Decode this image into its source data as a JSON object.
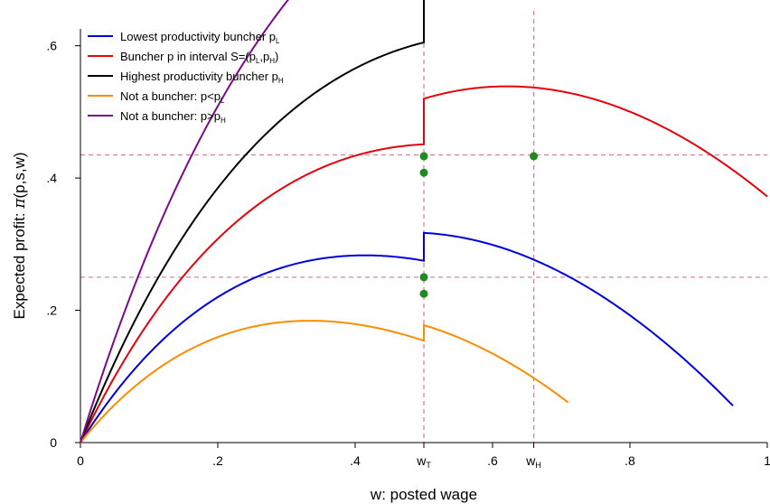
{
  "chart_data": {
    "type": "line",
    "xlabel": "w: posted wage",
    "ylabel_main": "Expected profit: ",
    "ylabel_symbol": "π",
    "ylabel_args": "(p,s,w)",
    "xlim": [
      0,
      1
    ],
    "ylim": [
      0,
      0.62
    ],
    "x_ticks": [
      {
        "value": 0,
        "label": "0"
      },
      {
        "value": 0.2,
        "label": ".2"
      },
      {
        "value": 0.4,
        "label": ".4"
      },
      {
        "value": 0.6,
        "label": ".6"
      },
      {
        "value": 0.8,
        "label": ".8"
      },
      {
        "value": 1,
        "label": "1"
      }
    ],
    "x_special_ticks": [
      {
        "value": 0.5,
        "main": "w",
        "sub": "T"
      },
      {
        "value": 0.66,
        "main": "w",
        "sub": "H"
      }
    ],
    "y_ticks": [
      {
        "value": 0,
        "label": "0"
      },
      {
        "value": 0.2,
        "label": ".2"
      },
      {
        "value": 0.4,
        "label": ".4"
      },
      {
        "value": 0.6,
        "label": ".6"
      }
    ],
    "ref_lines": {
      "color": "#c9829a",
      "vertical": [
        0.5,
        0.66
      ],
      "horizontal": [
        0.25,
        0.435
      ]
    },
    "series": [
      {
        "legend_main": "Lowest productivity buncher p",
        "legend_sub": "L",
        "legend_tail": "",
        "color": "#0000dd",
        "p": 1.0,
        "a": 0.75,
        "b": 0.9,
        "x_max": 0.95
      },
      {
        "legend_main": "Buncher p in interval S=(p",
        "legend_sub": "L",
        "legend_mid": ",p",
        "legend_sub2": "H",
        "legend_tail": ")",
        "color": "#e8000a",
        "p": 1.32,
        "a": 0.75,
        "b": 0.9,
        "x_max": 1.0
      },
      {
        "legend_main": "Highest productivity buncher p",
        "legend_sub": "H",
        "legend_tail": "",
        "color": "#000000",
        "p": 1.6,
        "a": 0.75,
        "b": 0.9,
        "x_max": 1.0
      },
      {
        "legend_main": "Not a buncher: p<p",
        "legend_sub": "L",
        "legend_tail": "",
        "color": "#ff8c00",
        "p": 0.78,
        "a": 0.75,
        "b": 0.9,
        "x_max": 0.71
      },
      {
        "legend_main": "Not a buncher: p>p",
        "legend_sub": "H",
        "legend_tail": "",
        "color": "#7a0a8c",
        "p": 2.05,
        "a": 0.75,
        "b": 0.9,
        "x_max": 1.0
      }
    ],
    "markers": {
      "color": "#1f8a1f",
      "points": [
        {
          "x": 0.5,
          "y": 0.25
        },
        {
          "x": 0.5,
          "y": 0.225
        },
        {
          "x": 0.5,
          "y": 0.433
        },
        {
          "x": 0.5,
          "y": 0.408
        },
        {
          "x": 0.66,
          "y": 0.433
        }
      ]
    }
  }
}
